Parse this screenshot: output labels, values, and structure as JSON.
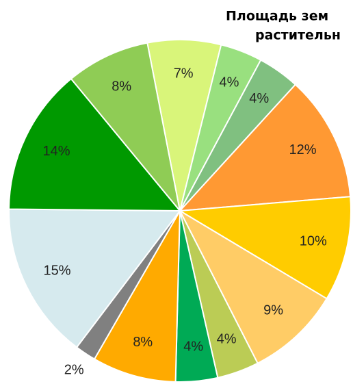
{
  "chart_data": {
    "type": "pie",
    "title": "Площадь зем",
    "subtitle": "растительн",
    "categories": [
      null,
      null,
      null,
      null,
      null,
      null,
      null,
      null,
      null,
      null,
      null,
      null,
      null
    ],
    "values": [
      7,
      4,
      4,
      12,
      10,
      9,
      4,
      4,
      8,
      2,
      15,
      14,
      8
    ],
    "value_labels": [
      "7%",
      "4%",
      "4%",
      "12%",
      "10%",
      "9%",
      "4%",
      "4%",
      "8%",
      "2%",
      "15%",
      "14%",
      "8%"
    ],
    "colors": [
      "#d9f57a",
      "#99e07f",
      "#80c080",
      "#ff9933",
      "#ffcc00",
      "#ffcc66",
      "#bbcc55",
      "#00aa55",
      "#ffaa00",
      "#808080",
      "#d6eaee",
      "#009900",
      "#8fcc55"
    ]
  }
}
